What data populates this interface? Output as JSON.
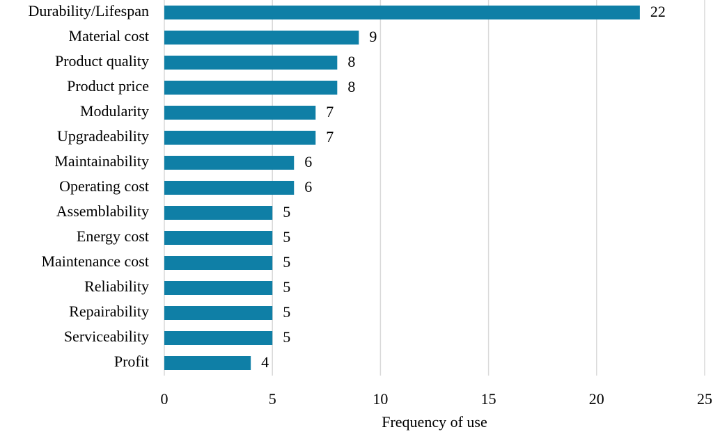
{
  "chart_data": {
    "type": "hbar",
    "x_label": "Frequency of use",
    "categories": [
      "Durability/Lifespan",
      "Material cost",
      "Product quality",
      "Product price",
      "Modularity",
      "Upgradeability",
      "Maintainability",
      "Operating cost",
      "Assemblability",
      "Energy cost",
      "Maintenance cost",
      "Reliability",
      "Repairability",
      "Serviceability",
      "Profit"
    ],
    "values": [
      22,
      9,
      8,
      8,
      7,
      7,
      6,
      6,
      5,
      5,
      5,
      5,
      5,
      5,
      4
    ],
    "color": "#0f7fa6",
    "xlim": [
      0,
      25
    ],
    "xticks": [
      0,
      5,
      10,
      15,
      20,
      25
    ],
    "grid": true
  }
}
